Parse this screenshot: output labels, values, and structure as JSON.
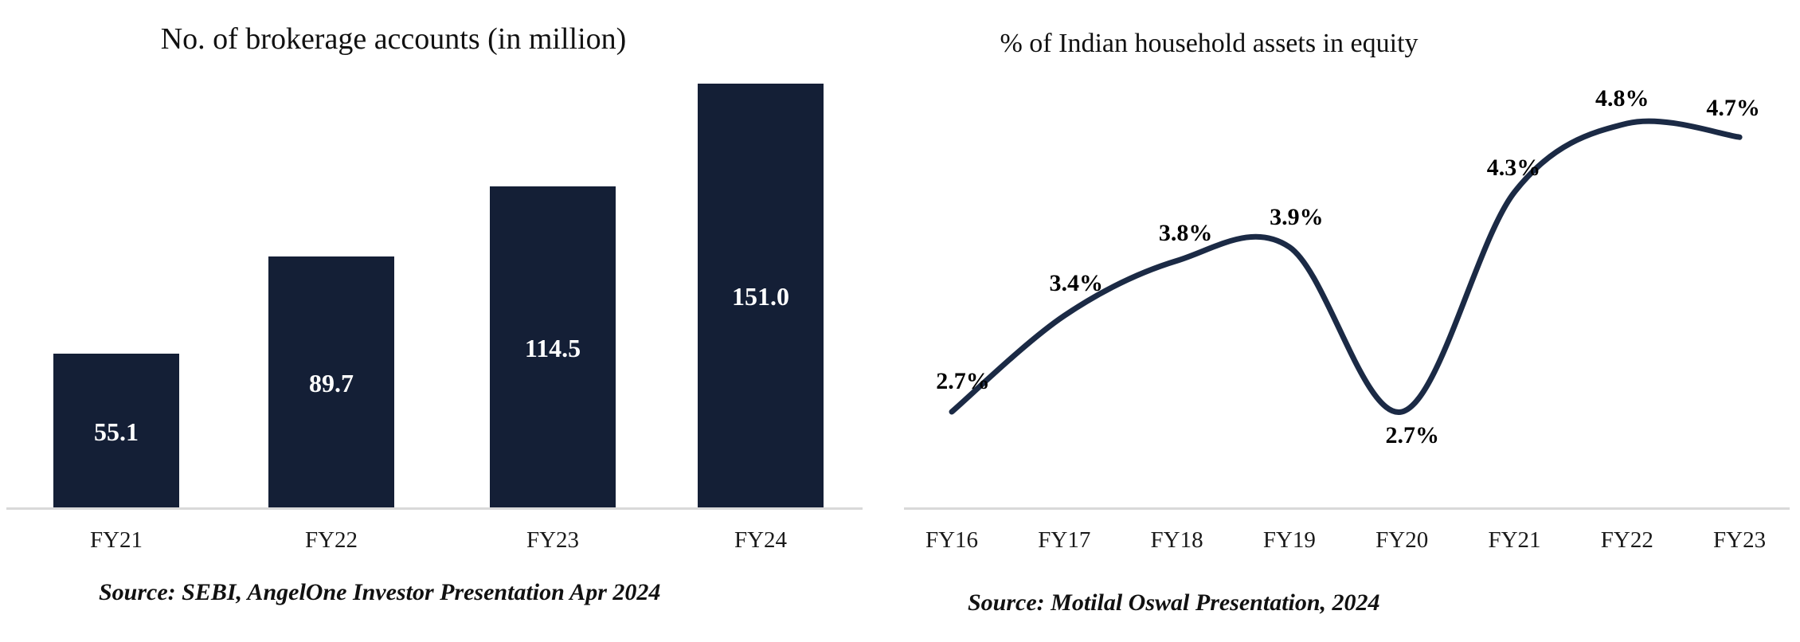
{
  "colors": {
    "bar_fill": "#141f36",
    "line_stroke": "#1b2a45",
    "axis_line": "#d9d9d9",
    "text": "#111111",
    "bar_value_text": "#ffffff"
  },
  "chart_data": [
    {
      "type": "bar",
      "title": "No. of brokerage accounts (in million)",
      "categories": [
        "FY21",
        "FY22",
        "FY23",
        "FY24"
      ],
      "values": [
        55.1,
        89.7,
        114.5,
        151.0
      ],
      "value_labels": [
        "55.1",
        "89.7",
        "114.5",
        "151.0"
      ],
      "source": "Source: SEBI, AngelOne Investor Presentation Apr 2024",
      "xlabel": "",
      "ylabel": "",
      "ylim": [
        0,
        160
      ],
      "grid": false,
      "legend": false,
      "value_label_position": "inside-center",
      "bar_color": "#141f36"
    },
    {
      "type": "line",
      "title": "% of Indian household assets in equity",
      "categories": [
        "FY16",
        "FY17",
        "FY18",
        "FY19",
        "FY20",
        "FY21",
        "FY22",
        "FY23"
      ],
      "values": [
        2.7,
        3.4,
        3.8,
        3.9,
        2.7,
        4.3,
        4.8,
        4.7
      ],
      "value_labels": [
        "2.7%",
        "3.4%",
        "3.8%",
        "3.9%",
        "2.7%",
        "4.3%",
        "4.8%",
        "4.7%"
      ],
      "source": "Source: Motilal Oswal Presentation, 2024",
      "xlabel": "",
      "ylabel": "",
      "ylim": [
        2.0,
        5.2
      ],
      "grid": false,
      "legend": false,
      "smooth": true,
      "line_color": "#1b2a45"
    }
  ]
}
